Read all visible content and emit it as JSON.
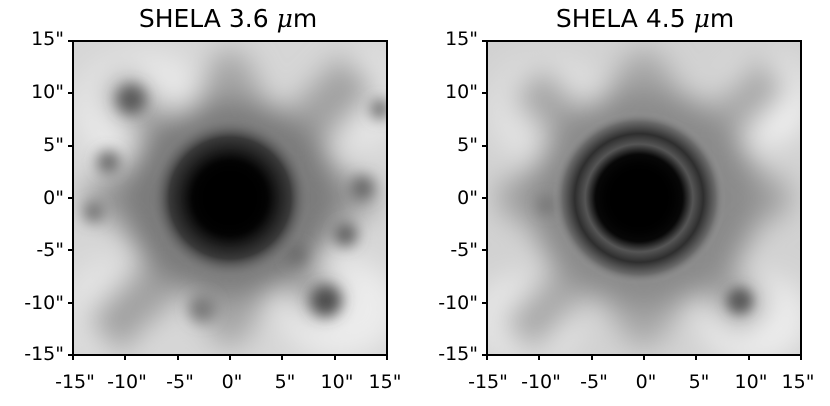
{
  "panels": [
    {
      "title_prefix": "SHELA 3.6 ",
      "title_mu": "μ",
      "title_suffix": "m",
      "y_ticks": [
        "15\"",
        "10\"",
        "5\"",
        "0\"",
        "-5\"",
        "-10\"",
        "-15\""
      ],
      "x_ticks": [
        "-15\"",
        "-10\"",
        "-5\"",
        "0\"",
        "5\"",
        "10\"",
        "15\""
      ]
    },
    {
      "title_prefix": "SHELA 4.5 ",
      "title_mu": "μ",
      "title_suffix": "m",
      "y_ticks": [
        "15\"",
        "10\"",
        "5\"",
        "0\"",
        "-5\"",
        "-10\"",
        "-15\""
      ],
      "x_ticks": [
        "-15\"",
        "-10\"",
        "-5\"",
        "0\"",
        "5\"",
        "10\"",
        "15\""
      ]
    }
  ]
}
